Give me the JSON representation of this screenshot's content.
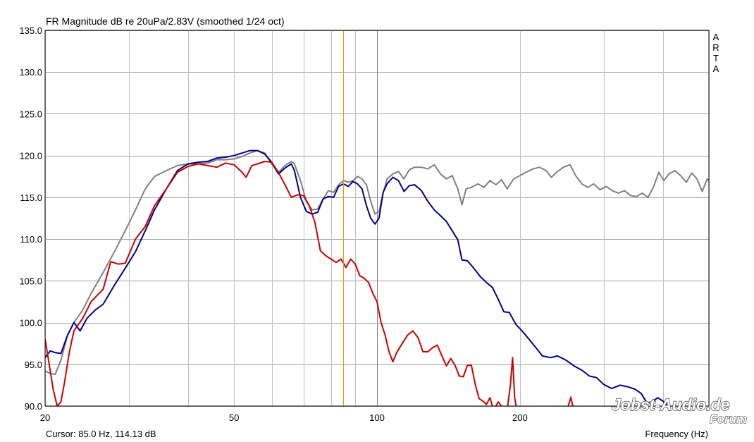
{
  "chart_data": {
    "type": "line",
    "title": "FR Magnitude dB re 20uPa/2.83V (smoothed 1/24 oct)",
    "xlabel": "Frequency (Hz)",
    "ylabel": "",
    "x_scale": "log",
    "xlim": [
      20,
      500
    ],
    "ylim": [
      90,
      135
    ],
    "x_ticks": [
      20,
      50,
      100,
      200
    ],
    "x_tick_labels": [
      "20",
      "50",
      "100",
      "200"
    ],
    "y_ticks": [
      90,
      95,
      100,
      105,
      110,
      115,
      120,
      125,
      130,
      135
    ],
    "y_tick_labels": [
      "90.0",
      "95.0",
      "100.0",
      "105.0",
      "110.0",
      "115.0",
      "120.0",
      "125.0",
      "130.0",
      "135.0"
    ],
    "grid": true,
    "cursor": {
      "frequency": 85.0,
      "label": "Cursor: 85.0 Hz, 114.13 dB"
    },
    "series": [
      {
        "color": "#808080",
        "points": [
          [
            20,
            94.2
          ],
          [
            20.5,
            93.9
          ],
          [
            21,
            93.8
          ],
          [
            21.6,
            95.5
          ],
          [
            22.3,
            98.5
          ],
          [
            23,
            100.0
          ],
          [
            24,
            101.5
          ],
          [
            25,
            103.5
          ],
          [
            26.5,
            106.0
          ],
          [
            28,
            108.5
          ],
          [
            29.5,
            111.0
          ],
          [
            31,
            113.5
          ],
          [
            32.5,
            116.0
          ],
          [
            34,
            117.5
          ],
          [
            36,
            118.2
          ],
          [
            38,
            118.8
          ],
          [
            40,
            119.0
          ],
          [
            42,
            119.0
          ],
          [
            44,
            119.1
          ],
          [
            46,
            119.5
          ],
          [
            48,
            119.5
          ],
          [
            50,
            119.6
          ],
          [
            52,
            119.9
          ],
          [
            54,
            120.3
          ],
          [
            56,
            120.6
          ],
          [
            58,
            120.3
          ],
          [
            60,
            119.0
          ],
          [
            62,
            118.0
          ],
          [
            64,
            118.8
          ],
          [
            66,
            119.3
          ],
          [
            67,
            119.0
          ],
          [
            69,
            117.0
          ],
          [
            71,
            114.5
          ],
          [
            73,
            113.5
          ],
          [
            75,
            113.6
          ],
          [
            77,
            114.8
          ],
          [
            79,
            115.8
          ],
          [
            81,
            115.6
          ],
          [
            83,
            116.5
          ],
          [
            85,
            117.0
          ],
          [
            87,
            116.8
          ],
          [
            89,
            117.0
          ],
          [
            91,
            117.5
          ],
          [
            93,
            117.2
          ],
          [
            95,
            116.5
          ],
          [
            97,
            114.5
          ],
          [
            99,
            113.0
          ],
          [
            101,
            113.3
          ],
          [
            103,
            115.5
          ],
          [
            105,
            117.2
          ],
          [
            108,
            117.8
          ],
          [
            111,
            118.1
          ],
          [
            114,
            117.2
          ],
          [
            117,
            118.3
          ],
          [
            120,
            118.6
          ],
          [
            124,
            118.6
          ],
          [
            128,
            118.4
          ],
          [
            132,
            118.9
          ],
          [
            136,
            117.8
          ],
          [
            140,
            117.2
          ],
          [
            144,
            117.6
          ],
          [
            148,
            116.0
          ],
          [
            151,
            114.1
          ],
          [
            154,
            116.0
          ],
          [
            158,
            116.2
          ],
          [
            163,
            116.6
          ],
          [
            168,
            116.2
          ],
          [
            173,
            117.0
          ],
          [
            178,
            116.5
          ],
          [
            183,
            117.1
          ],
          [
            188,
            116.0
          ],
          [
            194,
            117.2
          ],
          [
            200,
            117.6
          ],
          [
            206,
            118.0
          ],
          [
            213,
            118.4
          ],
          [
            220,
            118.6
          ],
          [
            227,
            118.2
          ],
          [
            233,
            117.4
          ],
          [
            240,
            118.1
          ],
          [
            247,
            118.6
          ],
          [
            255,
            118.9
          ],
          [
            262,
            117.6
          ],
          [
            270,
            116.6
          ],
          [
            278,
            116.2
          ],
          [
            286,
            116.6
          ],
          [
            295,
            115.9
          ],
          [
            304,
            116.3
          ],
          [
            313,
            115.8
          ],
          [
            322,
            115.5
          ],
          [
            332,
            115.8
          ],
          [
            342,
            115.2
          ],
          [
            352,
            115.1
          ],
          [
            362,
            115.5
          ],
          [
            372,
            115.0
          ],
          [
            382,
            116.2
          ],
          [
            392,
            118.0
          ],
          [
            402,
            117.0
          ],
          [
            412,
            117.8
          ],
          [
            424,
            118.2
          ],
          [
            436,
            117.6
          ],
          [
            448,
            116.8
          ],
          [
            460,
            117.9
          ],
          [
            472,
            117.2
          ],
          [
            484,
            115.7
          ],
          [
            496,
            117.2
          ],
          [
            500,
            117.0
          ]
        ]
      },
      {
        "color": "#00008b",
        "points": [
          [
            20,
            95.8
          ],
          [
            20.5,
            96.6
          ],
          [
            21,
            96.4
          ],
          [
            21.6,
            96.3
          ],
          [
            22.3,
            98.5
          ],
          [
            23,
            100.0
          ],
          [
            23.7,
            99.0
          ],
          [
            24.5,
            100.5
          ],
          [
            25.5,
            101.5
          ],
          [
            26.5,
            102.2
          ],
          [
            28,
            104.5
          ],
          [
            29.5,
            106.5
          ],
          [
            31,
            108.5
          ],
          [
            32.5,
            111.0
          ],
          [
            34,
            113.5
          ],
          [
            36,
            116.0
          ],
          [
            38,
            118.2
          ],
          [
            40,
            119.0
          ],
          [
            42,
            119.2
          ],
          [
            44,
            119.3
          ],
          [
            46,
            119.7
          ],
          [
            48,
            119.8
          ],
          [
            50,
            120.0
          ],
          [
            52,
            120.3
          ],
          [
            54,
            120.6
          ],
          [
            56,
            120.6
          ],
          [
            58,
            120.2
          ],
          [
            60,
            119.2
          ],
          [
            62,
            117.8
          ],
          [
            64,
            118.5
          ],
          [
            66,
            119.0
          ],
          [
            67,
            118.2
          ],
          [
            69,
            115.0
          ],
          [
            71,
            113.3
          ],
          [
            73,
            113.0
          ],
          [
            75,
            113.2
          ],
          [
            77,
            114.8
          ],
          [
            79,
            115.1
          ],
          [
            81,
            115.0
          ],
          [
            83,
            116.3
          ],
          [
            85,
            116.6
          ],
          [
            87,
            116.3
          ],
          [
            89,
            116.9
          ],
          [
            91,
            116.6
          ],
          [
            93,
            116.0
          ],
          [
            95,
            114.0
          ],
          [
            97,
            112.5
          ],
          [
            99,
            111.8
          ],
          [
            101,
            112.5
          ],
          [
            103,
            115.6
          ],
          [
            105,
            116.6
          ],
          [
            108,
            117.4
          ],
          [
            111,
            117.0
          ],
          [
            114,
            115.7
          ],
          [
            117,
            116.4
          ],
          [
            120,
            116.5
          ],
          [
            124,
            115.8
          ],
          [
            128,
            114.5
          ],
          [
            132,
            113.5
          ],
          [
            136,
            112.8
          ],
          [
            140,
            112.1
          ],
          [
            144,
            111.0
          ],
          [
            148,
            109.9
          ],
          [
            151,
            107.5
          ],
          [
            155,
            107.4
          ],
          [
            160,
            106.5
          ],
          [
            165,
            105.5
          ],
          [
            170,
            104.8
          ],
          [
            175,
            104.2
          ],
          [
            180,
            102.8
          ],
          [
            185,
            101.3
          ],
          [
            190,
            101.2
          ],
          [
            196,
            99.8
          ],
          [
            202,
            99.0
          ],
          [
            209,
            98.0
          ],
          [
            216,
            97.0
          ],
          [
            223,
            96.0
          ],
          [
            232,
            95.8
          ],
          [
            240,
            96.0
          ],
          [
            250,
            95.5
          ],
          [
            260,
            94.8
          ],
          [
            270,
            94.3
          ],
          [
            280,
            93.6
          ],
          [
            290,
            93.4
          ],
          [
            300,
            92.6
          ],
          [
            312,
            92.1
          ],
          [
            325,
            92.5
          ],
          [
            338,
            92.3
          ],
          [
            350,
            92.0
          ],
          [
            360,
            91.5
          ],
          [
            370,
            90.4
          ],
          [
            380,
            90.5
          ],
          [
            390,
            91.0
          ],
          [
            400,
            90.6
          ],
          [
            410,
            90.0
          ]
        ]
      },
      {
        "color": "#cc0000",
        "points": [
          [
            20,
            98.0
          ],
          [
            20.4,
            95.0
          ],
          [
            20.8,
            92.0
          ],
          [
            21.2,
            90.0
          ],
          [
            21.6,
            90.5
          ],
          [
            22.0,
            93.0
          ],
          [
            22.5,
            96.5
          ],
          [
            23,
            99.0
          ],
          [
            24,
            100.5
          ],
          [
            25,
            102.5
          ],
          [
            26.5,
            104.0
          ],
          [
            27.5,
            107.3
          ],
          [
            28.5,
            107.0
          ],
          [
            29.5,
            107.1
          ],
          [
            31,
            110.0
          ],
          [
            32.5,
            111.5
          ],
          [
            34,
            114.0
          ],
          [
            36,
            116.0
          ],
          [
            38,
            118.0
          ],
          [
            40,
            118.7
          ],
          [
            42,
            119.0
          ],
          [
            44,
            118.8
          ],
          [
            46,
            118.6
          ],
          [
            48,
            119.1
          ],
          [
            50,
            118.9
          ],
          [
            52,
            118.0
          ],
          [
            53,
            117.4
          ],
          [
            54.5,
            118.8
          ],
          [
            56,
            119.0
          ],
          [
            58,
            119.3
          ],
          [
            60,
            119.2
          ],
          [
            62,
            118.0
          ],
          [
            64,
            116.5
          ],
          [
            66,
            115.0
          ],
          [
            68,
            115.3
          ],
          [
            70,
            115.2
          ],
          [
            72,
            114.0
          ],
          [
            74,
            112.0
          ],
          [
            76,
            108.6
          ],
          [
            78,
            108.0
          ],
          [
            80,
            107.6
          ],
          [
            82,
            107.2
          ],
          [
            84,
            107.6
          ],
          [
            86,
            106.6
          ],
          [
            88,
            107.6
          ],
          [
            90,
            107.0
          ],
          [
            92,
            105.6
          ],
          [
            94,
            105.3
          ],
          [
            96,
            104.8
          ],
          [
            98,
            103.5
          ],
          [
            100,
            102.5
          ],
          [
            102,
            100.0
          ],
          [
            104,
            98.5
          ],
          [
            106,
            96.5
          ],
          [
            108,
            95.3
          ],
          [
            110,
            96.4
          ],
          [
            113,
            97.5
          ],
          [
            116,
            98.5
          ],
          [
            119,
            99.0
          ],
          [
            122,
            98.2
          ],
          [
            125,
            96.5
          ],
          [
            128,
            96.5
          ],
          [
            131,
            97.0
          ],
          [
            134,
            97.3
          ],
          [
            137,
            96.0
          ],
          [
            140,
            94.8
          ],
          [
            143,
            95.7
          ],
          [
            146,
            94.9
          ],
          [
            149,
            93.6
          ],
          [
            152,
            93.5
          ],
          [
            155,
            94.9
          ],
          [
            158,
            94.9
          ],
          [
            161,
            92.6
          ],
          [
            164,
            90.9
          ],
          [
            167,
            90.6
          ],
          [
            170,
            90.2
          ],
          [
            173,
            91.0
          ],
          [
            176,
            89.5
          ],
          [
            180,
            90.5
          ],
          [
            184,
            89.8
          ],
          [
            188,
            89.5
          ],
          [
            191,
            92.6
          ],
          [
            193,
            95.8
          ],
          [
            195,
            91.0
          ],
          [
            197,
            89.5
          ]
        ],
        "extra_points": [
          [
            252,
            89.8
          ],
          [
            256,
            91.0
          ],
          [
            259,
            89.8
          ]
        ]
      }
    ]
  },
  "labels": {
    "brand": [
      "A",
      "R",
      "T",
      "A"
    ],
    "watermark_main": "Jobst-Audio.de",
    "watermark_sub": "Forum"
  }
}
